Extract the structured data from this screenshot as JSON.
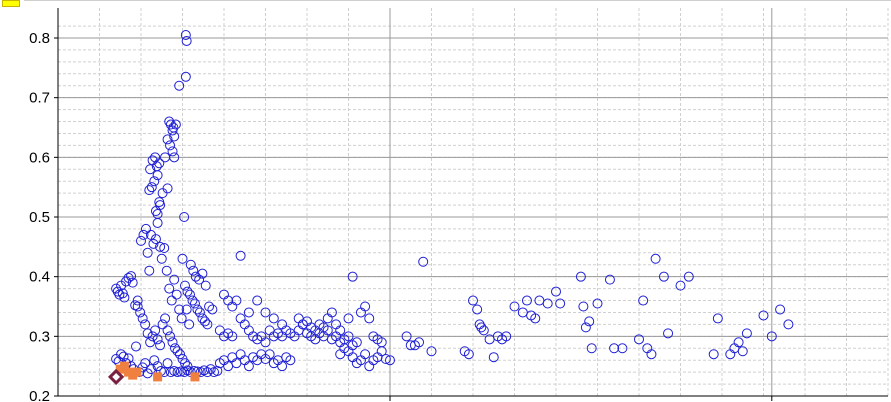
{
  "chart_data": {
    "type": "scatter",
    "title": "",
    "xlabel": "",
    "ylabel": "",
    "ylim": [
      0.2,
      0.83
    ],
    "xlim": [
      0,
      100
    ],
    "yticks": [
      "0.2",
      "0.3",
      "0.4",
      "0.5",
      "0.6",
      "0.7",
      "0.8"
    ],
    "grid": true,
    "colors": {
      "series_main": "#1f1fd6",
      "series_orange": "#f08040",
      "series_highlight": "#7a1f3f",
      "grid_major": "#999999",
      "grid_minor": "#d0d0d0",
      "legend_swatch": "#ffff00"
    },
    "series": [
      {
        "marker": "open-circle",
        "points": [
          [
            7.0,
            0.38
          ],
          [
            7.2,
            0.375
          ],
          [
            7.4,
            0.37
          ],
          [
            7.6,
            0.385
          ],
          [
            7.8,
            0.372
          ],
          [
            8.0,
            0.365
          ],
          [
            8.2,
            0.392
          ],
          [
            8.5,
            0.398
          ],
          [
            8.8,
            0.401
          ],
          [
            9.0,
            0.39
          ],
          [
            9.3,
            0.352
          ],
          [
            9.6,
            0.36
          ],
          [
            7.0,
            0.262
          ],
          [
            7.3,
            0.258
          ],
          [
            7.6,
            0.27
          ],
          [
            7.9,
            0.266
          ],
          [
            8.2,
            0.255
          ],
          [
            8.5,
            0.263
          ],
          [
            8.8,
            0.25
          ],
          [
            9.1,
            0.245
          ],
          [
            9.4,
            0.283
          ],
          [
            9.8,
            0.24
          ],
          [
            10.2,
            0.248
          ],
          [
            10.5,
            0.255
          ],
          [
            10.8,
            0.238
          ],
          [
            11.2,
            0.245
          ],
          [
            11.6,
            0.26
          ],
          [
            12.0,
            0.25
          ],
          [
            12.4,
            0.242
          ],
          [
            12.8,
            0.24
          ],
          [
            13.2,
            0.255
          ],
          [
            13.6,
            0.24
          ],
          [
            14.0,
            0.242
          ],
          [
            14.4,
            0.24
          ],
          [
            14.8,
            0.241
          ],
          [
            15.2,
            0.24
          ],
          [
            15.6,
            0.243
          ],
          [
            16.0,
            0.24
          ],
          [
            16.4,
            0.242
          ],
          [
            16.8,
            0.241
          ],
          [
            17.2,
            0.24
          ],
          [
            17.6,
            0.243
          ],
          [
            18.0,
            0.24
          ],
          [
            18.4,
            0.245
          ],
          [
            18.8,
            0.24
          ],
          [
            19.2,
            0.242
          ],
          [
            10.0,
            0.46
          ],
          [
            10.3,
            0.47
          ],
          [
            10.6,
            0.48
          ],
          [
            10.8,
            0.44
          ],
          [
            11.0,
            0.41
          ],
          [
            11.2,
            0.47
          ],
          [
            11.5,
            0.455
          ],
          [
            11.8,
            0.463
          ],
          [
            12.0,
            0.49
          ],
          [
            12.3,
            0.45
          ],
          [
            12.5,
            0.43
          ],
          [
            12.8,
            0.448
          ],
          [
            13.1,
            0.41
          ],
          [
            13.4,
            0.38
          ],
          [
            13.7,
            0.36
          ],
          [
            14.0,
            0.395
          ],
          [
            14.3,
            0.37
          ],
          [
            14.6,
            0.345
          ],
          [
            14.9,
            0.33
          ],
          [
            15.2,
            0.5
          ],
          [
            15.5,
            0.345
          ],
          [
            15.8,
            0.32
          ],
          [
            9.6,
            0.35
          ],
          [
            9.9,
            0.34
          ],
          [
            10.2,
            0.33
          ],
          [
            10.5,
            0.32
          ],
          [
            10.8,
            0.305
          ],
          [
            11.1,
            0.29
          ],
          [
            11.4,
            0.3
          ],
          [
            11.7,
            0.31
          ],
          [
            12.0,
            0.295
          ],
          [
            12.3,
            0.285
          ],
          [
            12.6,
            0.32
          ],
          [
            12.9,
            0.33
          ],
          [
            13.2,
            0.31
          ],
          [
            13.5,
            0.3
          ],
          [
            13.8,
            0.29
          ],
          [
            14.1,
            0.28
          ],
          [
            14.4,
            0.275
          ],
          [
            14.7,
            0.27
          ],
          [
            15.0,
            0.262
          ],
          [
            15.3,
            0.255
          ],
          [
            15.6,
            0.25
          ],
          [
            11.0,
            0.545
          ],
          [
            11.3,
            0.55
          ],
          [
            11.6,
            0.56
          ],
          [
            11.9,
            0.585
          ],
          [
            12.2,
            0.59
          ],
          [
            11.1,
            0.58
          ],
          [
            11.4,
            0.595
          ],
          [
            11.7,
            0.6
          ],
          [
            12.0,
            0.57
          ],
          [
            12.3,
            0.52
          ],
          [
            12.6,
            0.54
          ],
          [
            12.9,
            0.6
          ],
          [
            13.2,
            0.548
          ],
          [
            12.2,
            0.525
          ],
          [
            12.0,
            0.505
          ],
          [
            11.8,
            0.51
          ],
          [
            13.4,
            0.66
          ],
          [
            13.6,
            0.655
          ],
          [
            13.8,
            0.645
          ],
          [
            14.0,
            0.635
          ],
          [
            13.2,
            0.63
          ],
          [
            13.9,
            0.65
          ],
          [
            14.2,
            0.655
          ],
          [
            14.6,
            0.72
          ],
          [
            15.4,
            0.735
          ],
          [
            15.5,
            0.795
          ],
          [
            15.4,
            0.805
          ],
          [
            13.5,
            0.62
          ],
          [
            13.8,
            0.61
          ],
          [
            14.0,
            0.6
          ],
          [
            16.0,
            0.42
          ],
          [
            16.3,
            0.41
          ],
          [
            16.6,
            0.4
          ],
          [
            17.0,
            0.395
          ],
          [
            17.4,
            0.405
          ],
          [
            17.8,
            0.385
          ],
          [
            18.2,
            0.35
          ],
          [
            18.6,
            0.345
          ],
          [
            15.0,
            0.43
          ],
          [
            15.3,
            0.385
          ],
          [
            15.6,
            0.375
          ],
          [
            15.9,
            0.37
          ],
          [
            16.2,
            0.36
          ],
          [
            16.5,
            0.355
          ],
          [
            16.8,
            0.345
          ],
          [
            17.1,
            0.34
          ],
          [
            17.4,
            0.33
          ],
          [
            17.7,
            0.325
          ],
          [
            18.0,
            0.32
          ],
          [
            19.5,
            0.31
          ],
          [
            20.0,
            0.3
          ],
          [
            20.5,
            0.305
          ],
          [
            21.0,
            0.3
          ],
          [
            21.5,
            0.36
          ],
          [
            22.0,
            0.33
          ],
          [
            22.5,
            0.32
          ],
          [
            23.0,
            0.31
          ],
          [
            23.5,
            0.3
          ],
          [
            24.0,
            0.295
          ],
          [
            24.5,
            0.3
          ],
          [
            25.0,
            0.29
          ],
          [
            20.0,
            0.37
          ],
          [
            20.5,
            0.36
          ],
          [
            21.0,
            0.35
          ],
          [
            22.0,
            0.435
          ],
          [
            23.0,
            0.34
          ],
          [
            24.0,
            0.36
          ],
          [
            25.0,
            0.34
          ],
          [
            26.0,
            0.33
          ],
          [
            27.0,
            0.32
          ],
          [
            19.5,
            0.255
          ],
          [
            20.0,
            0.26
          ],
          [
            20.5,
            0.25
          ],
          [
            21.0,
            0.265
          ],
          [
            21.5,
            0.255
          ],
          [
            22.0,
            0.27
          ],
          [
            22.5,
            0.26
          ],
          [
            23.0,
            0.25
          ],
          [
            23.5,
            0.265
          ],
          [
            24.0,
            0.26
          ],
          [
            24.5,
            0.27
          ],
          [
            25.0,
            0.262
          ],
          [
            25.5,
            0.27
          ],
          [
            26.0,
            0.255
          ],
          [
            26.5,
            0.26
          ],
          [
            27.0,
            0.25
          ],
          [
            27.5,
            0.265
          ],
          [
            28.0,
            0.26
          ],
          [
            25.5,
            0.31
          ],
          [
            26.0,
            0.3
          ],
          [
            26.5,
            0.305
          ],
          [
            27.0,
            0.3
          ],
          [
            27.5,
            0.31
          ],
          [
            28.0,
            0.305
          ],
          [
            28.5,
            0.3
          ],
          [
            29.0,
            0.31
          ],
          [
            29.5,
            0.32
          ],
          [
            30.0,
            0.305
          ],
          [
            30.5,
            0.3
          ],
          [
            31.0,
            0.295
          ],
          [
            31.5,
            0.305
          ],
          [
            32.0,
            0.3
          ],
          [
            32.5,
            0.31
          ],
          [
            33.0,
            0.295
          ],
          [
            33.5,
            0.3
          ],
          [
            34.0,
            0.29
          ],
          [
            34.5,
            0.295
          ],
          [
            35.0,
            0.3
          ],
          [
            35.5,
            0.285
          ],
          [
            36.0,
            0.29
          ],
          [
            29.0,
            0.33
          ],
          [
            29.5,
            0.32
          ],
          [
            30.0,
            0.325
          ],
          [
            30.5,
            0.315
          ],
          [
            31.0,
            0.31
          ],
          [
            31.5,
            0.32
          ],
          [
            32.0,
            0.315
          ],
          [
            32.5,
            0.33
          ],
          [
            33.0,
            0.34
          ],
          [
            33.5,
            0.32
          ],
          [
            34.0,
            0.31
          ],
          [
            35.0,
            0.33
          ],
          [
            35.5,
            0.4
          ],
          [
            36.5,
            0.34
          ],
          [
            37.0,
            0.35
          ],
          [
            37.5,
            0.33
          ],
          [
            38.0,
            0.3
          ],
          [
            38.5,
            0.295
          ],
          [
            39.0,
            0.29
          ],
          [
            34.0,
            0.27
          ],
          [
            34.5,
            0.28
          ],
          [
            35.0,
            0.275
          ],
          [
            35.5,
            0.265
          ],
          [
            36.0,
            0.255
          ],
          [
            36.5,
            0.26
          ],
          [
            37.0,
            0.27
          ],
          [
            37.5,
            0.25
          ],
          [
            38.0,
            0.26
          ],
          [
            38.5,
            0.265
          ],
          [
            39.0,
            0.275
          ],
          [
            39.5,
            0.262
          ],
          [
            40.0,
            0.26
          ],
          [
            42.0,
            0.3
          ],
          [
            42.5,
            0.285
          ],
          [
            43.0,
            0.285
          ],
          [
            43.5,
            0.29
          ],
          [
            44.0,
            0.425
          ],
          [
            45.0,
            0.275
          ],
          [
            49.0,
            0.275
          ],
          [
            49.5,
            0.27
          ],
          [
            50.0,
            0.36
          ],
          [
            50.5,
            0.345
          ],
          [
            50.8,
            0.32
          ],
          [
            51.0,
            0.315
          ],
          [
            51.3,
            0.31
          ],
          [
            52.0,
            0.295
          ],
          [
            52.5,
            0.265
          ],
          [
            53.0,
            0.3
          ],
          [
            53.5,
            0.295
          ],
          [
            54.0,
            0.3
          ],
          [
            55.0,
            0.35
          ],
          [
            56.0,
            0.34
          ],
          [
            56.5,
            0.36
          ],
          [
            57.0,
            0.335
          ],
          [
            57.5,
            0.33
          ],
          [
            58.0,
            0.36
          ],
          [
            59.0,
            0.355
          ],
          [
            60.0,
            0.375
          ],
          [
            60.5,
            0.355
          ],
          [
            63.0,
            0.4
          ],
          [
            63.3,
            0.35
          ],
          [
            63.6,
            0.315
          ],
          [
            64.0,
            0.325
          ],
          [
            64.3,
            0.28
          ],
          [
            65.0,
            0.355
          ],
          [
            66.5,
            0.395
          ],
          [
            67.0,
            0.28
          ],
          [
            68.0,
            0.28
          ],
          [
            70.0,
            0.295
          ],
          [
            70.5,
            0.36
          ],
          [
            71.0,
            0.28
          ],
          [
            71.5,
            0.27
          ],
          [
            72.0,
            0.43
          ],
          [
            73.0,
            0.4
          ],
          [
            73.5,
            0.305
          ],
          [
            75.0,
            0.385
          ],
          [
            76.0,
            0.4
          ],
          [
            79.0,
            0.27
          ],
          [
            79.5,
            0.33
          ],
          [
            81.0,
            0.27
          ],
          [
            81.5,
            0.28
          ],
          [
            82.0,
            0.29
          ],
          [
            82.5,
            0.275
          ],
          [
            83.0,
            0.305
          ],
          [
            85.0,
            0.335
          ],
          [
            86.0,
            0.3
          ],
          [
            87.0,
            0.345
          ],
          [
            88.0,
            0.32
          ]
        ]
      },
      {
        "marker": "filled-square",
        "points": [
          [
            7.5,
            0.245
          ],
          [
            8.0,
            0.25
          ],
          [
            8.5,
            0.24
          ],
          [
            9.0,
            0.235
          ],
          [
            9.5,
            0.24
          ],
          [
            12.0,
            0.232
          ],
          [
            16.5,
            0.232
          ]
        ]
      },
      {
        "marker": "diamond",
        "points": [
          [
            7.0,
            0.232
          ]
        ]
      }
    ]
  }
}
